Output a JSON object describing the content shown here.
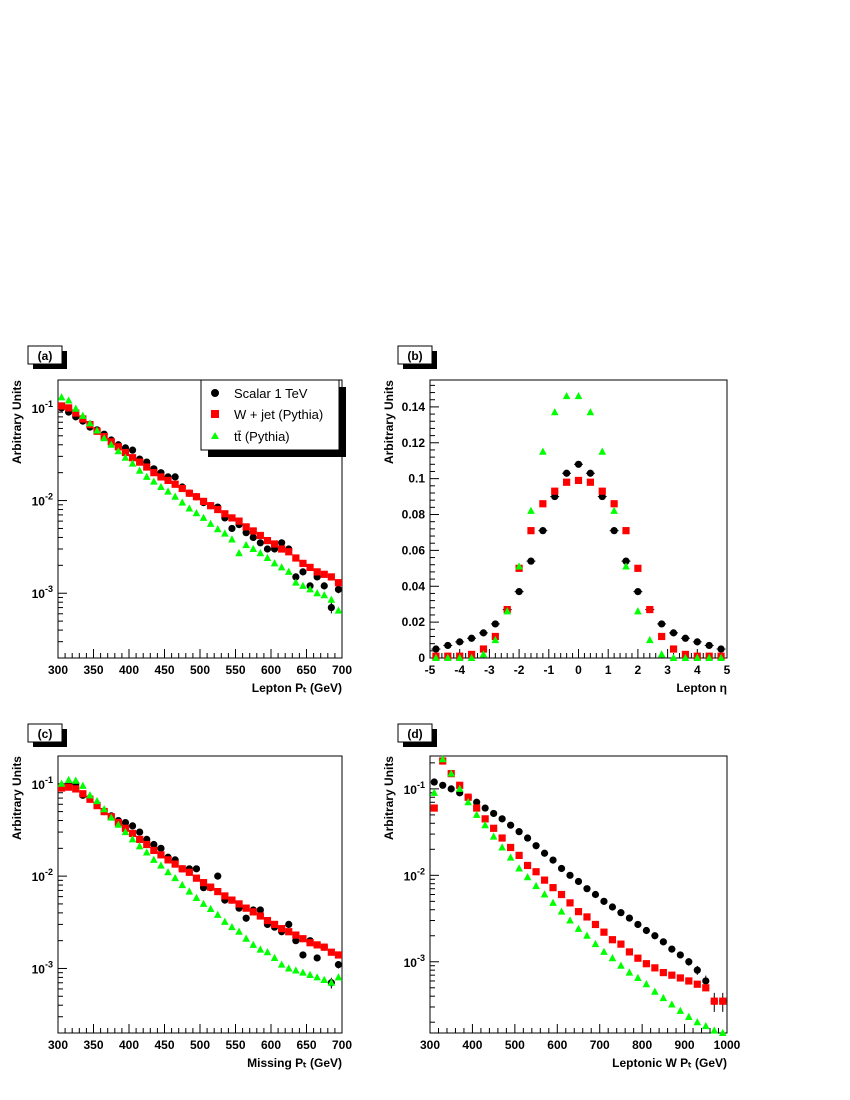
{
  "legend": {
    "entries": [
      {
        "label": "Scalar 1 TeV",
        "color": "#000000",
        "marker": "circle"
      },
      {
        "label": "W + jet (Pythia)",
        "color": "#ff0000",
        "marker": "square"
      },
      {
        "label": "tt̄ (Pythia)",
        "color": "#00ff00",
        "marker": "triangle"
      }
    ]
  },
  "chart_data": [
    {
      "panel": "(a)",
      "type": "scatter",
      "yscale": "log",
      "xlabel": "Lepton Pₜ (GeV)",
      "ylabel": "Arbitrary Units",
      "xlim": [
        300,
        700
      ],
      "ylim": [
        0.0002,
        0.2
      ],
      "xticks": [
        300,
        350,
        400,
        450,
        500,
        550,
        600,
        650,
        700
      ],
      "ydecades": [
        {
          "v": 0.1,
          "label": "10^-1"
        },
        {
          "v": 0.01,
          "label": "10^-2"
        },
        {
          "v": 0.001,
          "label": "10^-3"
        }
      ],
      "x": [
        305,
        315,
        325,
        335,
        345,
        355,
        365,
        375,
        385,
        395,
        405,
        415,
        425,
        435,
        445,
        455,
        465,
        475,
        485,
        495,
        505,
        515,
        525,
        535,
        545,
        555,
        565,
        575,
        585,
        595,
        605,
        615,
        625,
        635,
        645,
        655,
        665,
        675,
        685,
        695
      ],
      "series": [
        {
          "name": "Scalar 1 TeV",
          "color": "#000000",
          "marker": "circle",
          "errors": true,
          "values": [
            0.1,
            0.09,
            0.08,
            0.072,
            0.062,
            0.058,
            0.052,
            0.045,
            0.04,
            0.037,
            0.035,
            0.028,
            0.026,
            0.022,
            0.02,
            0.018,
            0.018,
            0.014,
            0.012,
            0.011,
            0.0095,
            0.0088,
            0.0085,
            0.0065,
            0.005,
            0.0055,
            0.0045,
            0.004,
            0.0035,
            0.003,
            0.003,
            0.0035,
            0.003,
            0.0015,
            0.0017,
            0.0012,
            0.0015,
            0.0012,
            0.0007,
            0.0011
          ]
        },
        {
          "name": "W + jet (Pythia)",
          "color": "#ff0000",
          "marker": "square",
          "errors": false,
          "values": [
            0.105,
            0.1,
            0.088,
            0.076,
            0.066,
            0.056,
            0.049,
            0.043,
            0.038,
            0.033,
            0.029,
            0.026,
            0.023,
            0.02,
            0.018,
            0.0165,
            0.015,
            0.0135,
            0.012,
            0.011,
            0.0098,
            0.0088,
            0.008,
            0.0072,
            0.0065,
            0.006,
            0.0052,
            0.0047,
            0.0042,
            0.0037,
            0.0034,
            0.003,
            0.0028,
            0.0024,
            0.0021,
            0.0019,
            0.0017,
            0.0016,
            0.0015,
            0.0013
          ]
        },
        {
          "name": "tt̄ (Pythia)",
          "color": "#00ff00",
          "marker": "triangle",
          "errors": false,
          "values": [
            0.13,
            0.12,
            0.098,
            0.082,
            0.068,
            0.057,
            0.047,
            0.04,
            0.034,
            0.029,
            0.025,
            0.021,
            0.018,
            0.016,
            0.014,
            0.0125,
            0.011,
            0.0095,
            0.0082,
            0.0073,
            0.0065,
            0.0056,
            0.0049,
            0.0044,
            0.0038,
            0.0027,
            0.0033,
            0.003,
            0.0027,
            0.0024,
            0.0021,
            0.0019,
            0.0017,
            0.0013,
            0.0012,
            0.0011,
            0.001,
            0.00095,
            0.00085,
            0.00065
          ]
        }
      ]
    },
    {
      "panel": "(b)",
      "type": "scatter",
      "yscale": "linear",
      "xlabel": "Lepton η",
      "ylabel": "Arbitrary Units",
      "xlim": [
        -5,
        5
      ],
      "ylim": [
        0,
        0.155
      ],
      "xticks": [
        -5,
        -4,
        -3,
        -2,
        -1,
        0,
        1,
        2,
        3,
        4,
        5
      ],
      "yticks": [
        0,
        0.02,
        0.04,
        0.06,
        0.08,
        0.1,
        0.12,
        0.14
      ],
      "ytick_labels": [
        "0",
        "0.02",
        "0.04",
        "0.06",
        "0.08",
        "0.1",
        "0.12",
        "0.14"
      ],
      "x": [
        -4.8,
        -4.4,
        -4.0,
        -3.6,
        -3.2,
        -2.8,
        -2.4,
        -2.0,
        -1.6,
        -1.2,
        -0.8,
        -0.4,
        0.0,
        0.4,
        0.8,
        1.2,
        1.6,
        2.0,
        2.4,
        2.8,
        3.2,
        3.6,
        4.0,
        4.4,
        4.8
      ],
      "series": [
        {
          "name": "Scalar 1 TeV",
          "color": "#000000",
          "marker": "circle",
          "errors": true,
          "values": [
            0.005,
            0.007,
            0.009,
            0.011,
            0.014,
            0.019,
            0.027,
            0.037,
            0.054,
            0.071,
            0.09,
            0.103,
            0.108,
            0.103,
            0.09,
            0.071,
            0.054,
            0.037,
            0.027,
            0.019,
            0.014,
            0.011,
            0.009,
            0.007,
            0.005
          ]
        },
        {
          "name": "W + jet (Pythia)",
          "color": "#ff0000",
          "marker": "square",
          "errors": false,
          "values": [
            0.001,
            0.001,
            0.001,
            0.002,
            0.005,
            0.012,
            0.027,
            0.05,
            0.071,
            0.086,
            0.093,
            0.098,
            0.099,
            0.098,
            0.093,
            0.086,
            0.071,
            0.05,
            0.027,
            0.012,
            0.005,
            0.002,
            0.001,
            0.001,
            0.001
          ]
        },
        {
          "name": "tt̄ (Pythia)",
          "color": "#00ff00",
          "marker": "triangle",
          "errors": false,
          "values": [
            0,
            0,
            0,
            0,
            0.002,
            0.01,
            0.026,
            0.051,
            0.082,
            0.115,
            0.137,
            0.146,
            0.146,
            0.137,
            0.115,
            0.082,
            0.051,
            0.026,
            0.01,
            0.002,
            0,
            0,
            0,
            0,
            0
          ]
        }
      ]
    },
    {
      "panel": "(c)",
      "type": "scatter",
      "yscale": "log",
      "xlabel": "Missing Pₜ (GeV)",
      "ylabel": "Arbitrary Units",
      "xlim": [
        300,
        700
      ],
      "ylim": [
        0.0002,
        0.2
      ],
      "xticks": [
        300,
        350,
        400,
        450,
        500,
        550,
        600,
        650,
        700
      ],
      "ydecades": [
        {
          "v": 0.1,
          "label": "10^-1"
        },
        {
          "v": 0.01,
          "label": "10^-2"
        },
        {
          "v": 0.001,
          "label": "10^-3"
        }
      ],
      "x": [
        305,
        315,
        325,
        335,
        345,
        355,
        365,
        375,
        385,
        395,
        405,
        415,
        425,
        435,
        445,
        455,
        465,
        475,
        485,
        495,
        505,
        515,
        525,
        535,
        545,
        555,
        565,
        575,
        585,
        595,
        605,
        615,
        625,
        635,
        645,
        655,
        665,
        675,
        685,
        695
      ],
      "series": [
        {
          "name": "Scalar 1 TeV",
          "color": "#000000",
          "marker": "circle",
          "errors": true,
          "values": [
            0.09,
            0.1,
            0.1,
            0.075,
            0.07,
            0.06,
            0.05,
            0.045,
            0.04,
            0.038,
            0.035,
            0.03,
            0.025,
            0.022,
            0.02,
            0.016,
            0.015,
            0.012,
            0.012,
            0.012,
            0.0075,
            0.0075,
            0.01,
            0.0055,
            0.0055,
            0.0045,
            0.0035,
            0.0043,
            0.0043,
            0.003,
            0.0028,
            0.0025,
            0.003,
            0.002,
            0.0014,
            0.002,
            0.0013,
            0.0017,
            0.0007,
            0.0011
          ]
        },
        {
          "name": "W + jet (Pythia)",
          "color": "#ff0000",
          "marker": "square",
          "errors": false,
          "values": [
            0.09,
            0.092,
            0.088,
            0.078,
            0.068,
            0.058,
            0.05,
            0.044,
            0.038,
            0.033,
            0.029,
            0.025,
            0.022,
            0.019,
            0.017,
            0.015,
            0.0135,
            0.012,
            0.011,
            0.0095,
            0.0085,
            0.0076,
            0.0068,
            0.0061,
            0.0055,
            0.005,
            0.0045,
            0.0041,
            0.0037,
            0.0033,
            0.003,
            0.0027,
            0.0025,
            0.0023,
            0.0021,
            0.0019,
            0.0018,
            0.0017,
            0.0015,
            0.0014
          ]
        },
        {
          "name": "tt̄ (Pythia)",
          "color": "#00ff00",
          "marker": "triangle",
          "errors": false,
          "values": [
            0.1,
            0.11,
            0.108,
            0.095,
            0.075,
            0.065,
            0.053,
            0.043,
            0.036,
            0.03,
            0.025,
            0.021,
            0.018,
            0.015,
            0.013,
            0.011,
            0.0095,
            0.008,
            0.0068,
            0.0058,
            0.005,
            0.0044,
            0.0038,
            0.0032,
            0.0028,
            0.0025,
            0.0021,
            0.0018,
            0.0016,
            0.0015,
            0.0013,
            0.0011,
            0.001,
            0.00095,
            0.0009,
            0.00085,
            0.0008,
            0.00075,
            0.0007,
            0.0008
          ]
        }
      ]
    },
    {
      "panel": "(d)",
      "type": "scatter",
      "yscale": "log",
      "xlabel": "Leptonic W Pₜ (GeV)",
      "ylabel": "Arbitrary Units",
      "xlim": [
        300,
        1000
      ],
      "ylim": [
        0.00015,
        0.24
      ],
      "xticks": [
        300,
        400,
        500,
        600,
        700,
        800,
        900,
        1000
      ],
      "ydecades": [
        {
          "v": 0.1,
          "label": "10^-1"
        },
        {
          "v": 0.01,
          "label": "10^-2"
        },
        {
          "v": 0.001,
          "label": "10^-3"
        }
      ],
      "x": [
        310,
        330,
        350,
        370,
        390,
        410,
        430,
        450,
        470,
        490,
        510,
        530,
        550,
        570,
        590,
        610,
        630,
        650,
        670,
        690,
        710,
        730,
        750,
        770,
        790,
        810,
        830,
        850,
        870,
        890,
        910,
        930,
        950,
        970,
        990
      ],
      "series": [
        {
          "name": "Scalar 1 TeV",
          "color": "#000000",
          "marker": "circle",
          "errors": true,
          "values": [
            0.12,
            0.11,
            0.1,
            0.09,
            0.08,
            0.07,
            0.06,
            0.052,
            0.045,
            0.038,
            0.032,
            0.027,
            0.022,
            0.018,
            0.015,
            0.012,
            0.01,
            0.0085,
            0.007,
            0.006,
            0.005,
            0.0043,
            0.0037,
            0.0032,
            0.0027,
            0.0023,
            0.002,
            0.0017,
            0.0014,
            0.0012,
            0.001,
            0.0008,
            0.0006,
            0.00035,
            0.00035
          ]
        },
        {
          "name": "W + jet (Pythia)",
          "color": "#ff0000",
          "marker": "square",
          "errors": false,
          "values": [
            0.06,
            0.21,
            0.15,
            0.11,
            0.08,
            0.06,
            0.045,
            0.035,
            0.027,
            0.021,
            0.017,
            0.013,
            0.011,
            0.0088,
            0.0072,
            0.006,
            0.0048,
            0.0038,
            0.0033,
            0.0027,
            0.0022,
            0.0018,
            0.0016,
            0.0013,
            0.0011,
            0.00095,
            0.00085,
            0.00075,
            0.0007,
            0.00065,
            0.0006,
            0.00055,
            0.0005,
            0.00035,
            0.00035
          ]
        },
        {
          "name": "tt̄ (Pythia)",
          "color": "#00ff00",
          "marker": "triangle",
          "errors": false,
          "values": [
            0.09,
            0.22,
            0.15,
            0.1,
            0.07,
            0.05,
            0.038,
            0.028,
            0.021,
            0.016,
            0.012,
            0.0095,
            0.0075,
            0.006,
            0.0048,
            0.0038,
            0.003,
            0.0024,
            0.002,
            0.0016,
            0.0013,
            0.0011,
            0.0009,
            0.00075,
            0.00065,
            0.00055,
            0.00045,
            0.00038,
            0.00032,
            0.00027,
            0.00023,
            0.0002,
            0.00018,
            0.00016,
            0.00015
          ]
        }
      ]
    }
  ]
}
